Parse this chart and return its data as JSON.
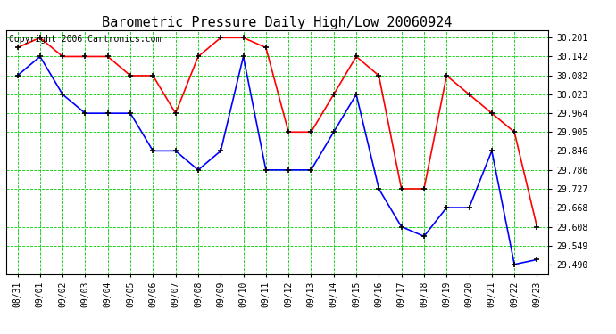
{
  "title": "Barometric Pressure Daily High/Low 20060924",
  "copyright": "Copyright 2006 Cartronics.com",
  "x_labels": [
    "08/31",
    "09/01",
    "09/02",
    "09/03",
    "09/04",
    "09/05",
    "09/06",
    "09/07",
    "09/08",
    "09/09",
    "09/10",
    "09/11",
    "09/12",
    "09/13",
    "09/14",
    "09/15",
    "09/16",
    "09/17",
    "09/18",
    "09/19",
    "09/20",
    "09/21",
    "09/22",
    "09/23"
  ],
  "high_values": [
    30.17,
    30.201,
    30.142,
    30.142,
    30.142,
    30.082,
    30.082,
    29.964,
    30.142,
    30.201,
    30.201,
    30.17,
    29.905,
    29.905,
    30.023,
    30.142,
    30.082,
    29.727,
    29.727,
    30.082,
    30.023,
    29.964,
    29.905,
    29.608
  ],
  "low_values": [
    30.082,
    30.142,
    30.023,
    29.964,
    29.964,
    29.964,
    29.846,
    29.846,
    29.786,
    29.846,
    30.142,
    29.786,
    29.786,
    29.786,
    29.905,
    30.023,
    29.727,
    29.608,
    29.578,
    29.668,
    29.668,
    29.846,
    29.49,
    29.505
  ],
  "y_ticks": [
    29.49,
    29.549,
    29.608,
    29.668,
    29.727,
    29.786,
    29.846,
    29.905,
    29.964,
    30.023,
    30.082,
    30.142,
    30.201
  ],
  "y_min": 29.46,
  "y_max": 30.225,
  "high_color": "#ff0000",
  "low_color": "#0000ff",
  "grid_color": "#00cc00",
  "bg_color": "#ffffff",
  "plot_bg_color": "#ffffff",
  "marker": "+",
  "marker_color": "#000000",
  "title_fontsize": 11,
  "tick_fontsize": 7,
  "copyright_fontsize": 7
}
